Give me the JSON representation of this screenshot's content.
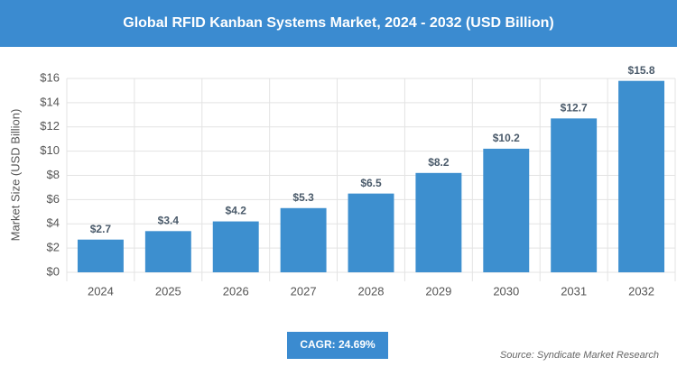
{
  "chart_data": {
    "type": "bar",
    "title": "Global RFID Kanban Systems Market, 2024 - 2032 (USD Billion)",
    "y_label": "Market Size (USD Billion)",
    "categories": [
      "2024",
      "2025",
      "2026",
      "2027",
      "2028",
      "2029",
      "2030",
      "2031",
      "2032"
    ],
    "values": [
      2.7,
      3.4,
      4.2,
      5.3,
      6.5,
      8.2,
      10.2,
      12.7,
      15.8
    ],
    "value_labels": [
      "$2.7",
      "$3.4",
      "$4.2",
      "$5.3",
      "$6.5",
      "$8.2",
      "$10.2",
      "$12.7",
      "$15.8"
    ],
    "color": "#3d8fcf",
    "ylim": [
      0,
      16
    ],
    "yticks": [
      {
        "value": 0,
        "label": "$0"
      },
      {
        "value": 2,
        "label": "$2"
      },
      {
        "value": 4,
        "label": "$4"
      },
      {
        "value": 6,
        "label": "$6"
      },
      {
        "value": 8,
        "label": "$8"
      },
      {
        "value": 10,
        "label": "$10"
      },
      {
        "value": 12,
        "label": "$12"
      },
      {
        "value": 14,
        "label": "$14"
      },
      {
        "value": 16,
        "label": "$16"
      }
    ],
    "grid": true,
    "cagr": "CAGR: 24.69%",
    "source": "Source: Syndicate Market Research"
  }
}
